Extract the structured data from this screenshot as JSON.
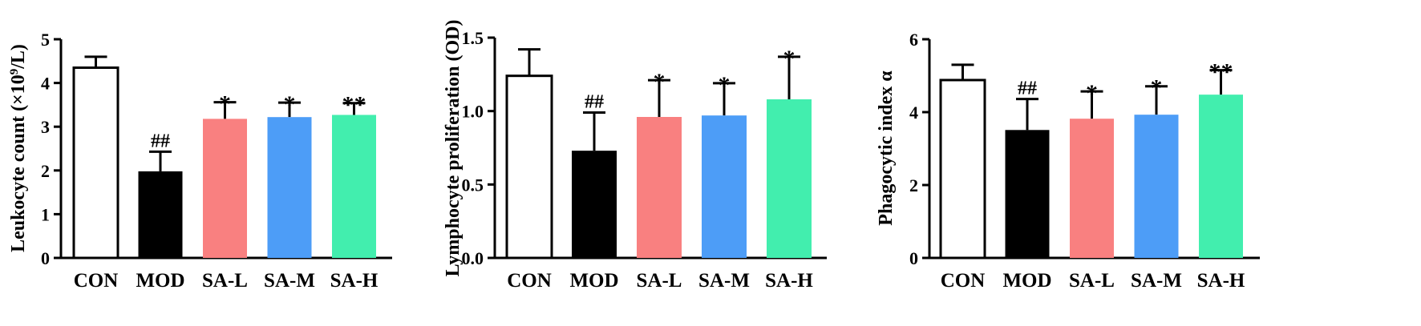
{
  "colors": {
    "CON": "#ffffff",
    "MOD": "#000000",
    "SA-L": "#f98080",
    "SA-M": "#4d9df7",
    "SA-H": "#42eeae",
    "axis": "#000000"
  },
  "chart_data": [
    {
      "type": "bar",
      "title": "",
      "xlabel": "",
      "ylabel_main": "Leukocyte count (×10",
      "ylabel_sup": "9",
      "ylabel_tail": "/L)",
      "ylim": [
        0,
        5
      ],
      "yticks": [
        "0",
        "1",
        "2",
        "3",
        "4",
        "5"
      ],
      "categories": [
        "CON",
        "MOD",
        "SA-L",
        "SA-M",
        "SA-H"
      ],
      "values": [
        4.35,
        1.98,
        3.18,
        3.22,
        3.27
      ],
      "errors": [
        0.25,
        0.45,
        0.38,
        0.33,
        0.27
      ],
      "significance": [
        "",
        "##",
        "*",
        "*",
        "**"
      ]
    },
    {
      "type": "bar",
      "title": "",
      "xlabel": "",
      "ylabel_main": "Lymphocyte proliferation (OD)",
      "ylabel_sup": "",
      "ylabel_tail": "",
      "ylim": [
        0,
        1.5
      ],
      "yticks": [
        "0.0",
        "0.5",
        "1.0",
        "1.5"
      ],
      "categories": [
        "CON",
        "MOD",
        "SA-L",
        "SA-M",
        "SA-H"
      ],
      "values": [
        1.24,
        0.73,
        0.96,
        0.97,
        1.08
      ],
      "errors": [
        0.18,
        0.26,
        0.25,
        0.22,
        0.29
      ],
      "significance": [
        "",
        "##",
        "*",
        "*",
        "*"
      ]
    },
    {
      "type": "bar",
      "title": "",
      "xlabel": "",
      "ylabel_main": "Phagocytic index α",
      "ylabel_sup": "",
      "ylabel_tail": "",
      "ylim": [
        0,
        6
      ],
      "yticks": [
        "0",
        "2",
        "4",
        "6"
      ],
      "categories": [
        "CON",
        "MOD",
        "SA-L",
        "SA-M",
        "SA-H"
      ],
      "values": [
        4.88,
        3.51,
        3.82,
        3.93,
        4.48
      ],
      "errors": [
        0.42,
        0.85,
        0.75,
        0.78,
        0.67
      ],
      "significance": [
        "",
        "##",
        "*",
        "*",
        "**"
      ]
    }
  ]
}
